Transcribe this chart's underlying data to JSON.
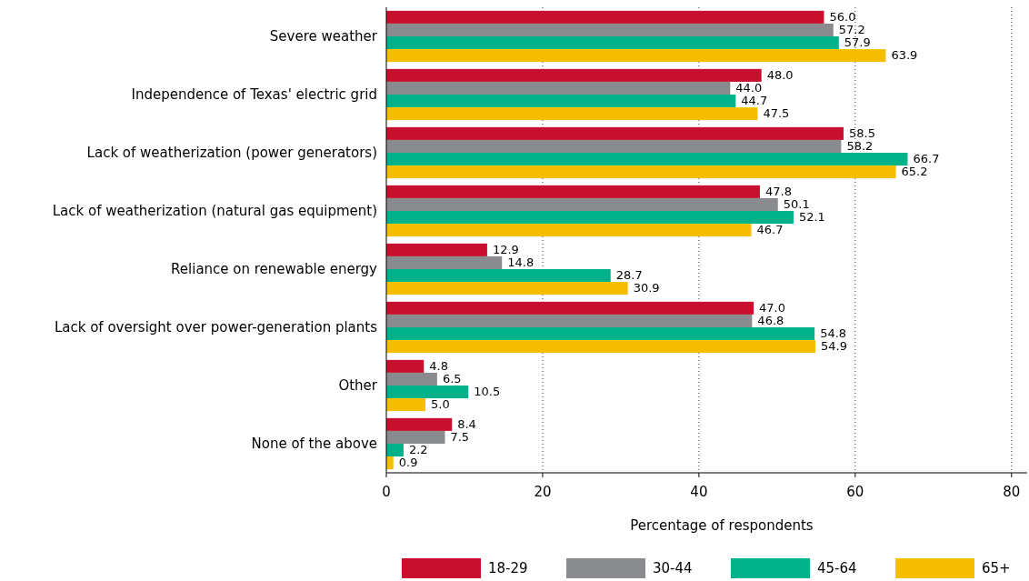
{
  "chart_data": {
    "type": "bar",
    "orientation": "horizontal",
    "xlabel": "Percentage of respondents",
    "categories": [
      "Severe weather",
      "Independence of Texas' electric grid",
      "Lack of weatherization (power generators)",
      "Lack of weatherization (natural gas equipment)",
      "Reliance on renewable energy",
      "Lack of oversight over power-generation plants",
      "Other",
      "None of the above"
    ],
    "series": [
      {
        "name": "18-29",
        "color": "#c8102e",
        "values": [
          56,
          48,
          58.5,
          47.8,
          12.9,
          47,
          4.8,
          8.4
        ],
        "value_labels": [
          "56.0",
          "48.0",
          "58.5",
          "47.8",
          "12.9",
          "47.0",
          "4.8",
          "8.4"
        ]
      },
      {
        "name": "30-44",
        "color": "#898b8e",
        "values": [
          57.2,
          44,
          58.2,
          50.1,
          14.8,
          46.8,
          6.5,
          7.5
        ],
        "value_labels": [
          "57.2",
          "44.0",
          "58.2",
          "50.1",
          "14.8",
          "46.8",
          "6.5",
          "7.5"
        ]
      },
      {
        "name": "45-64",
        "color": "#00b189",
        "values": [
          57.9,
          44.7,
          66.7,
          52.1,
          28.7,
          54.8,
          10.5,
          2.2
        ],
        "value_labels": [
          "57.9",
          "44.7",
          "66.7",
          "52.1",
          "28.7",
          "54.8",
          "10.5",
          "2.2"
        ]
      },
      {
        "name": "65+",
        "color": "#f5be00",
        "values": [
          63.9,
          47.5,
          65.2,
          46.7,
          30.9,
          54.9,
          5,
          0.9
        ],
        "value_labels": [
          "63.9",
          "47.5",
          "65.2",
          "46.7",
          "30.9",
          "54.9",
          "5.0",
          "0.9"
        ]
      }
    ],
    "xlim": [
      0,
      82
    ],
    "xticks": [
      0,
      20,
      40,
      60,
      80
    ],
    "grid": "x",
    "legend": "bottom"
  }
}
